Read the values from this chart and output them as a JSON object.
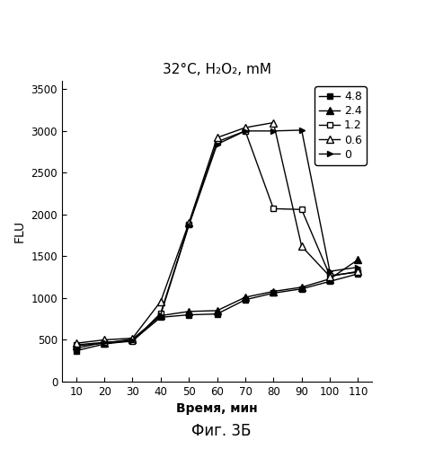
{
  "title": "32°C, H₂O₂, mM",
  "xlabel": "Время, мин",
  "ylabel": "FLU",
  "caption": "Фиг. 3Б",
  "x": [
    10,
    20,
    30,
    40,
    50,
    60,
    70,
    80,
    90,
    100,
    110
  ],
  "series": [
    {
      "label": "4.8",
      "marker": "s",
      "fillstyle": "full",
      "color": "#000000",
      "markersize": 5,
      "y": [
        370,
        450,
        490,
        770,
        800,
        810,
        980,
        1060,
        1110,
        1200,
        1290
      ]
    },
    {
      "label": "2.4",
      "marker": "^",
      "fillstyle": "full",
      "color": "#000000",
      "markersize": 6,
      "y": [
        430,
        460,
        510,
        790,
        840,
        850,
        1010,
        1080,
        1130,
        1230,
        1460
      ]
    },
    {
      "label": "1.2",
      "marker": "s",
      "fillstyle": "none",
      "color": "#000000",
      "markersize": 5,
      "y": [
        440,
        470,
        480,
        820,
        1880,
        2870,
        3000,
        2070,
        2060,
        1270,
        1310
      ]
    },
    {
      "label": "0.6",
      "marker": "^",
      "fillstyle": "none",
      "color": "#000000",
      "markersize": 6,
      "y": [
        460,
        500,
        520,
        960,
        1900,
        2920,
        3040,
        3100,
        1620,
        1260,
        1320
      ]
    },
    {
      "label": "0",
      "marker": ">",
      "fillstyle": "full",
      "color": "#000000",
      "markersize": 5,
      "y": [
        400,
        470,
        490,
        800,
        1870,
        2840,
        3000,
        3000,
        3010,
        1320,
        1370
      ]
    }
  ],
  "xlim": [
    5,
    115
  ],
  "ylim": [
    0,
    3600
  ],
  "yticks": [
    0,
    500,
    1000,
    1500,
    2000,
    2500,
    3000,
    3500
  ],
  "xticks": [
    10,
    20,
    30,
    40,
    50,
    60,
    70,
    80,
    90,
    100,
    110
  ],
  "figsize": [
    4.93,
    5.0
  ],
  "dpi": 100
}
